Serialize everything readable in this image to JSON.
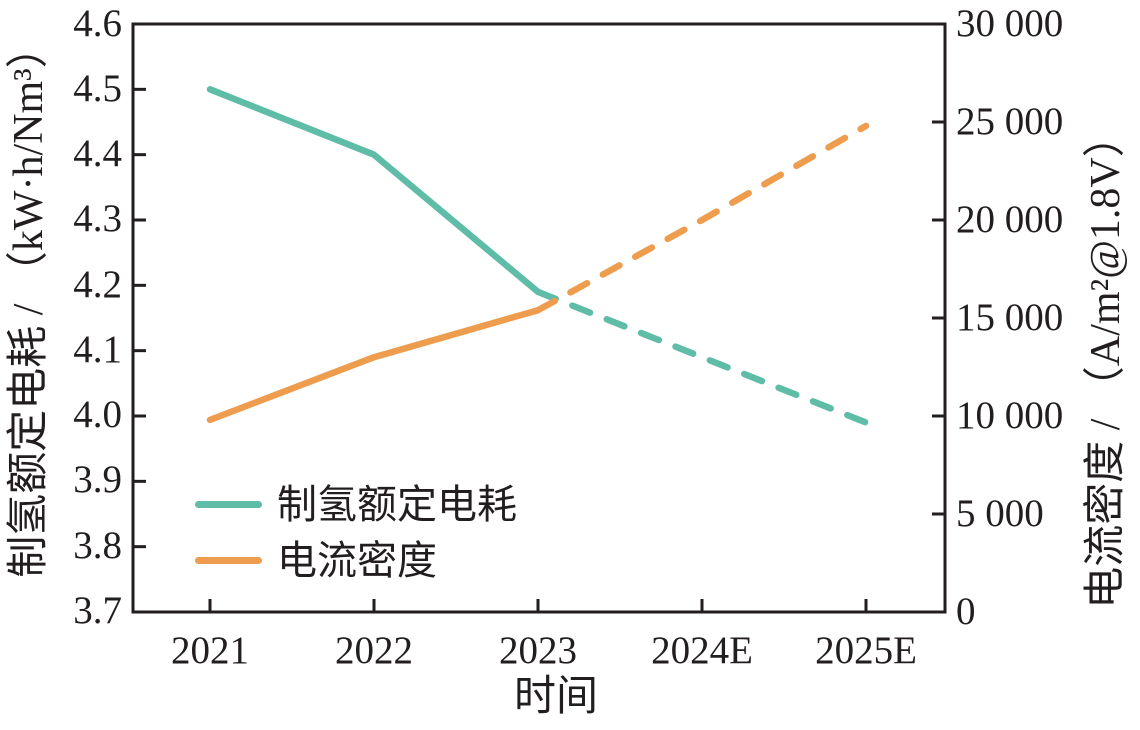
{
  "chart_data": {
    "type": "line",
    "title": "",
    "categories": [
      "2021",
      "2022",
      "2023",
      "2024E",
      "2025E"
    ],
    "solid_until_index": 2,
    "series": [
      {
        "name": "制氢额定电耗",
        "axis": "left",
        "color": "#5fbca6",
        "values": [
          4.5,
          4.4,
          4.19,
          4.09,
          3.99
        ],
        "line_style": "solid through 2023, dashed for 2024E-2025E forecast"
      },
      {
        "name": "电流密度",
        "axis": "right",
        "color": "#ee9d4e",
        "values": [
          9800,
          13000,
          15400,
          20000,
          24800
        ],
        "line_style": "solid through 2023, dashed for 2024E-2025E forecast"
      }
    ],
    "left_axis": {
      "label": "制氢额定电耗 / （kW·h/Nm³）",
      "min": 3.7,
      "max": 4.6,
      "tick_values": [
        4.6,
        4.5,
        4.4,
        4.3,
        4.2,
        4.1,
        4.0,
        3.9,
        3.8,
        3.7
      ],
      "tick_labels": [
        "4.6",
        "4.5",
        "4.4",
        "4.3",
        "4.2",
        "4.1",
        "4.0",
        "3.9",
        "3.8",
        "3.7"
      ]
    },
    "right_axis": {
      "label": "电流密度 / （A/m²@1.8V）",
      "min": 0,
      "max": 30000,
      "tick_values": [
        30000,
        25000,
        20000,
        15000,
        10000,
        5000,
        0
      ],
      "tick_labels": [
        "30 000",
        "25 000",
        "20 000",
        "15 000",
        "10 000",
        "5 000",
        "0"
      ]
    },
    "x_axis": {
      "label": "时间",
      "tick_labels": [
        "2021",
        "2022",
        "2023",
        "2024E",
        "2025E"
      ]
    },
    "colors": {
      "axis_ink": "#221e1f",
      "background": "#ffffff"
    },
    "legend": {
      "position": "inside lower-left",
      "grid": "off"
    }
  }
}
